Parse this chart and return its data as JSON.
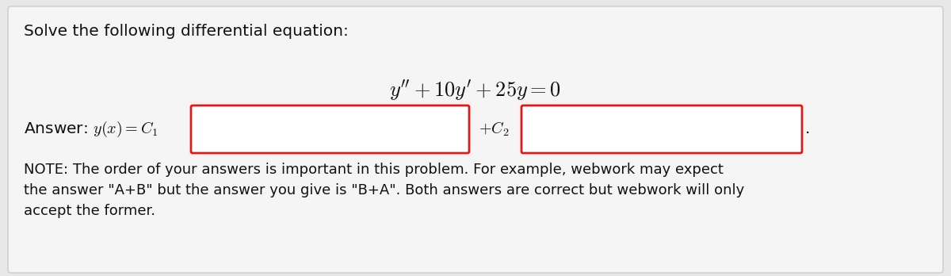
{
  "outer_bg": "#e8e8e8",
  "panel_bg": "#f5f5f5",
  "panel_edge": "#d0d0d0",
  "text_color": "#111111",
  "title_text": "Solve the following differential equation:",
  "equation": "$y'' + 10y' + 25y = 0$",
  "answer_prefix": "Answer: $y(x) = C_1$",
  "answer_c2": "$+C_2$",
  "answer_period": ".",
  "note_line1": "NOTE: The order of your answers is important in this problem. For example, webwork may expect",
  "note_line2": "the answer \"A+B\" but the answer you give is \"B+A\". Both answers are correct but webwork will only",
  "note_line3": "accept the former.",
  "box_edge_color": "#cc2222",
  "box_fill": "#ffffff",
  "box_glow": "#ffeeee",
  "figwidth": 12.0,
  "figheight": 3.48,
  "dpi": 100
}
